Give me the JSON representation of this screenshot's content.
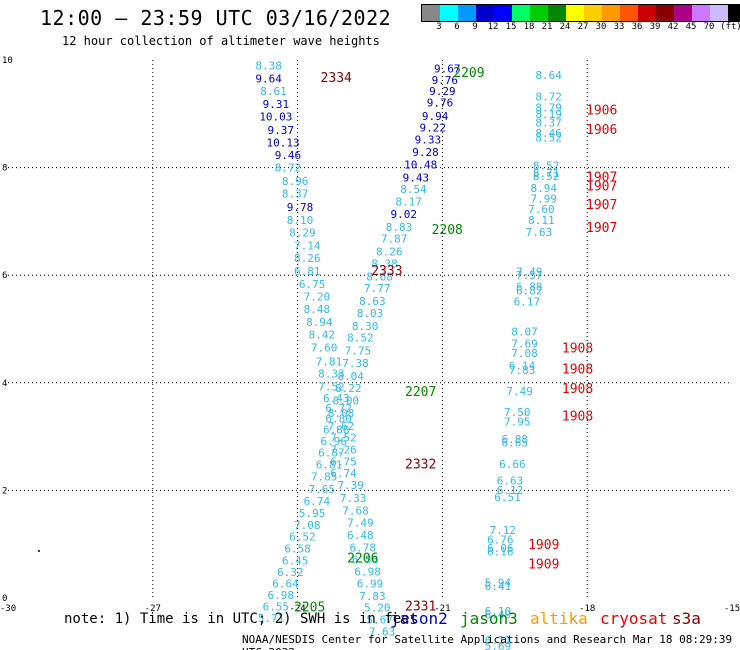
{
  "header": {
    "title": "12:00 – 23:59 UTC 03/16/2022",
    "subtitle": "12 hour collection of altimeter wave heights"
  },
  "legend": {
    "colors": [
      "#888888",
      "#00ffff",
      "#0099ff",
      "#0000cc",
      "#0000ff",
      "#00ff66",
      "#00cc00",
      "#008800",
      "#ffff00",
      "#ffcc00",
      "#ff9900",
      "#ff5500",
      "#cc0000",
      "#880000",
      "#aa0088",
      "#cc77ff",
      "#ccbbff",
      "#000000"
    ],
    "labels": [
      "3",
      "6",
      "9",
      "12",
      "15",
      "18",
      "21",
      "24",
      "27",
      "30",
      "33",
      "36",
      "39",
      "42",
      "45",
      "70",
      "(ft)"
    ]
  },
  "chart_data": {
    "type": "scatter",
    "title": "12:00 – 23:59 UTC 03/16/2022",
    "subtitle": "12 hour collection of altimeter wave heights",
    "xlim": [
      -30,
      -15
    ],
    "ylim": [
      0,
      10
    ],
    "xticks": [
      "-30",
      "-27",
      "-24",
      "-21",
      "-18",
      "-15"
    ],
    "yticks": [
      "0",
      "2",
      "4",
      "6",
      "8",
      "10"
    ],
    "grid": true,
    "units": "ft",
    "points": [
      {
        "x": -24.6,
        "y": 9.9,
        "v": "8.38",
        "c": "#33bbee"
      },
      {
        "x": -24.6,
        "y": 9.66,
        "v": "9.64",
        "c": "#0000cc"
      },
      {
        "x": -24.5,
        "y": 9.42,
        "v": "8.61",
        "c": "#33bbee"
      },
      {
        "x": -24.45,
        "y": 9.18,
        "v": "9.31",
        "c": "#0000cc"
      },
      {
        "x": -24.45,
        "y": 8.95,
        "v": "10.03",
        "c": "#0000cc"
      },
      {
        "x": -24.35,
        "y": 8.7,
        "v": "9.37",
        "c": "#0000cc"
      },
      {
        "x": -24.3,
        "y": 8.47,
        "v": "10.13",
        "c": "#0000cc"
      },
      {
        "x": -24.2,
        "y": 8.23,
        "v": "9.46",
        "c": "#0000cc"
      },
      {
        "x": -24.2,
        "y": 8.0,
        "v": "8.72",
        "c": "#33bbee"
      },
      {
        "x": -24.05,
        "y": 7.75,
        "v": "8.96",
        "c": "#33bbee"
      },
      {
        "x": -24.05,
        "y": 7.52,
        "v": "8.37",
        "c": "#33bbee"
      },
      {
        "x": -23.95,
        "y": 7.27,
        "v": "9.78",
        "c": "#0000cc"
      },
      {
        "x": -23.95,
        "y": 7.03,
        "v": "8.10",
        "c": "#33bbee"
      },
      {
        "x": -23.9,
        "y": 6.79,
        "v": "8.29",
        "c": "#33bbee"
      },
      {
        "x": -23.8,
        "y": 6.55,
        "v": "7.14",
        "c": "#33bbee"
      },
      {
        "x": -23.8,
        "y": 6.32,
        "v": "8.26",
        "c": "#33bbee"
      },
      {
        "x": -23.8,
        "y": 6.08,
        "v": "6.81",
        "c": "#33bbee"
      },
      {
        "x": -23.7,
        "y": 5.84,
        "v": "6.75",
        "c": "#33bbee"
      },
      {
        "x": -23.6,
        "y": 5.6,
        "v": "7.20",
        "c": "#33bbee"
      },
      {
        "x": -23.6,
        "y": 5.37,
        "v": "8.48",
        "c": "#33bbee"
      },
      {
        "x": -23.55,
        "y": 5.13,
        "v": "8.94",
        "c": "#33bbee"
      },
      {
        "x": -23.5,
        "y": 4.9,
        "v": "8.42",
        "c": "#33bbee"
      },
      {
        "x": -23.45,
        "y": 4.66,
        "v": "7.60",
        "c": "#33bbee"
      },
      {
        "x": -23.35,
        "y": 4.4,
        "v": "7.81",
        "c": "#33bbee"
      },
      {
        "x": -23.3,
        "y": 4.17,
        "v": "8.33",
        "c": "#33bbee"
      },
      {
        "x": -23.3,
        "y": 3.93,
        "v": "7.52",
        "c": "#33bbee"
      },
      {
        "x": -23.2,
        "y": 3.72,
        "v": "6.43",
        "c": "#33bbee"
      },
      {
        "x": -23.15,
        "y": 3.53,
        "v": "6.72",
        "c": "#33bbee"
      },
      {
        "x": -23.15,
        "y": 3.34,
        "v": "6.80",
        "c": "#33bbee"
      },
      {
        "x": -23.2,
        "y": 3.13,
        "v": "6.88",
        "c": "#33bbee"
      },
      {
        "x": -23.25,
        "y": 2.92,
        "v": "6.96",
        "c": "#33bbee"
      },
      {
        "x": -23.3,
        "y": 2.7,
        "v": "6.87",
        "c": "#33bbee"
      },
      {
        "x": -23.35,
        "y": 2.48,
        "v": "6.81",
        "c": "#33bbee"
      },
      {
        "x": -23.45,
        "y": 2.26,
        "v": "7.85",
        "c": "#33bbee"
      },
      {
        "x": -23.5,
        "y": 2.03,
        "v": "7.65",
        "c": "#33bbee"
      },
      {
        "x": -23.6,
        "y": 1.8,
        "v": "6.74",
        "c": "#33bbee"
      },
      {
        "x": -23.7,
        "y": 1.58,
        "v": "5.95",
        "c": "#33bbee"
      },
      {
        "x": -23.8,
        "y": 1.36,
        "v": "7.08",
        "c": "#33bbee"
      },
      {
        "x": -23.9,
        "y": 1.14,
        "v": "6.52",
        "c": "#33bbee"
      },
      {
        "x": -24.0,
        "y": 0.92,
        "v": "6.58",
        "c": "#33bbee"
      },
      {
        "x": -24.05,
        "y": 0.7,
        "v": "6.45",
        "c": "#33bbee"
      },
      {
        "x": -24.15,
        "y": 0.48,
        "v": "6.32",
        "c": "#33bbee"
      },
      {
        "x": -24.25,
        "y": 0.27,
        "v": "6.64",
        "c": "#33bbee"
      },
      {
        "x": -24.35,
        "y": 0.06,
        "v": "6.98",
        "c": "#33bbee"
      },
      {
        "x": -24.45,
        "y": -0.16,
        "v": "6.55",
        "c": "#33bbee"
      },
      {
        "x": -24.55,
        "y": -0.37,
        "v": "5.71",
        "c": "#33bbee"
      },
      {
        "x": -20.9,
        "y": 9.84,
        "v": "9.67",
        "c": "#0000cc"
      },
      {
        "x": -20.95,
        "y": 9.63,
        "v": "9.76",
        "c": "#0000cc"
      },
      {
        "x": -21.0,
        "y": 9.42,
        "v": "9.29",
        "c": "#0000cc"
      },
      {
        "x": -21.05,
        "y": 9.21,
        "v": "9.76",
        "c": "#0000cc"
      },
      {
        "x": -21.15,
        "y": 8.96,
        "v": "9.94",
        "c": "#0000cc"
      },
      {
        "x": -21.2,
        "y": 8.75,
        "v": "9.22",
        "c": "#0000cc"
      },
      {
        "x": -21.3,
        "y": 8.52,
        "v": "9.33",
        "c": "#0000cc"
      },
      {
        "x": -21.35,
        "y": 8.29,
        "v": "9.28",
        "c": "#0000cc"
      },
      {
        "x": -21.45,
        "y": 8.06,
        "v": "10.48",
        "c": "#0000cc"
      },
      {
        "x": -21.55,
        "y": 7.82,
        "v": "9.43",
        "c": "#0000cc"
      },
      {
        "x": -21.6,
        "y": 7.6,
        "v": "8.54",
        "c": "#33bbee"
      },
      {
        "x": -21.7,
        "y": 7.37,
        "v": "8.17",
        "c": "#33bbee"
      },
      {
        "x": -21.8,
        "y": 7.14,
        "v": "9.02",
        "c": "#0000cc"
      },
      {
        "x": -21.9,
        "y": 6.9,
        "v": "8.83",
        "c": "#33bbee"
      },
      {
        "x": -22.0,
        "y": 6.68,
        "v": "7.87",
        "c": "#33bbee"
      },
      {
        "x": -22.1,
        "y": 6.44,
        "v": "8.26",
        "c": "#33bbee"
      },
      {
        "x": -22.2,
        "y": 6.22,
        "v": "8.38",
        "c": "#33bbee"
      },
      {
        "x": -22.3,
        "y": 5.98,
        "v": "8.68",
        "c": "#33bbee"
      },
      {
        "x": -22.35,
        "y": 5.76,
        "v": "7.77",
        "c": "#33bbee"
      },
      {
        "x": -22.45,
        "y": 5.52,
        "v": "8.63",
        "c": "#33bbee"
      },
      {
        "x": -22.5,
        "y": 5.3,
        "v": "8.03",
        "c": "#33bbee"
      },
      {
        "x": -22.6,
        "y": 5.06,
        "v": "8.30",
        "c": "#33bbee"
      },
      {
        "x": -22.7,
        "y": 4.84,
        "v": "8.52",
        "c": "#33bbee"
      },
      {
        "x": -22.75,
        "y": 4.6,
        "v": "7.75",
        "c": "#33bbee"
      },
      {
        "x": -22.8,
        "y": 4.37,
        "v": "7.38",
        "c": "#33bbee"
      },
      {
        "x": -22.9,
        "y": 4.13,
        "v": "8.04",
        "c": "#33bbee"
      },
      {
        "x": -22.95,
        "y": 3.9,
        "v": "8.22",
        "c": "#33bbee"
      },
      {
        "x": -23.0,
        "y": 3.67,
        "v": "8.00",
        "c": "#33bbee"
      },
      {
        "x": -23.1,
        "y": 3.44,
        "v": "8.08",
        "c": "#33bbee"
      },
      {
        "x": -23.1,
        "y": 3.2,
        "v": "7.62",
        "c": "#33bbee"
      },
      {
        "x": -23.05,
        "y": 2.98,
        "v": "7.52",
        "c": "#33bbee"
      },
      {
        "x": -23.05,
        "y": 2.76,
        "v": "7.26",
        "c": "#33bbee"
      },
      {
        "x": -23.05,
        "y": 2.54,
        "v": "6.75",
        "c": "#33bbee"
      },
      {
        "x": -23.05,
        "y": 2.32,
        "v": "6.74",
        "c": "#33bbee"
      },
      {
        "x": -22.9,
        "y": 2.1,
        "v": "7.39",
        "c": "#33bbee"
      },
      {
        "x": -22.85,
        "y": 1.86,
        "v": "7.33",
        "c": "#33bbee"
      },
      {
        "x": -22.8,
        "y": 1.63,
        "v": "7.68",
        "c": "#33bbee"
      },
      {
        "x": -22.7,
        "y": 1.4,
        "v": "7.49",
        "c": "#33bbee"
      },
      {
        "x": -22.7,
        "y": 1.17,
        "v": "6.48",
        "c": "#33bbee"
      },
      {
        "x": -22.65,
        "y": 0.94,
        "v": "6.78",
        "c": "#33bbee"
      },
      {
        "x": -22.6,
        "y": 0.72,
        "v": "6.56",
        "c": "#33bbee"
      },
      {
        "x": -22.55,
        "y": 0.49,
        "v": "6.98",
        "c": "#33bbee"
      },
      {
        "x": -22.5,
        "y": 0.27,
        "v": "6.99",
        "c": "#33bbee"
      },
      {
        "x": -22.45,
        "y": 0.04,
        "v": "7.83",
        "c": "#33bbee"
      },
      {
        "x": -22.35,
        "y": -0.18,
        "v": "5.20",
        "c": "#33bbee"
      },
      {
        "x": -22.3,
        "y": -0.4,
        "v": "5.67",
        "c": "#33bbee"
      },
      {
        "x": -22.25,
        "y": -0.62,
        "v": "7.63",
        "c": "#33bbee"
      },
      {
        "x": -18.8,
        "y": 9.72,
        "v": "8.64",
        "c": "#33bbee"
      },
      {
        "x": -18.8,
        "y": 9.32,
        "v": "8.72",
        "c": "#33bbee"
      },
      {
        "x": -18.8,
        "y": 9.12,
        "v": "8.79",
        "c": "#33bbee"
      },
      {
        "x": -18.8,
        "y": 9.0,
        "v": "8.19",
        "c": "#33bbee"
      },
      {
        "x": -18.8,
        "y": 8.84,
        "v": "8.37",
        "c": "#33bbee"
      },
      {
        "x": -18.8,
        "y": 8.64,
        "v": "8.46",
        "c": "#33bbee"
      },
      {
        "x": -18.8,
        "y": 8.56,
        "v": "8.52",
        "c": "#33bbee"
      },
      {
        "x": -18.85,
        "y": 8.04,
        "v": "8.52",
        "c": "#33bbee"
      },
      {
        "x": -18.85,
        "y": 7.9,
        "v": "8.71",
        "c": "#33bbee"
      },
      {
        "x": -18.85,
        "y": 7.84,
        "v": "8.52",
        "c": "#33bbee"
      },
      {
        "x": -18.9,
        "y": 7.62,
        "v": "8.94",
        "c": "#33bbee"
      },
      {
        "x": -18.9,
        "y": 7.43,
        "v": "7.99",
        "c": "#33bbee"
      },
      {
        "x": -18.95,
        "y": 7.23,
        "v": "7.60",
        "c": "#33bbee"
      },
      {
        "x": -18.95,
        "y": 7.03,
        "v": "8.11",
        "c": "#33bbee"
      },
      {
        "x": -19.0,
        "y": 6.8,
        "v": "7.63",
        "c": "#33bbee"
      },
      {
        "x": -19.2,
        "y": 6.07,
        "v": "7.49",
        "c": "#33bbee"
      },
      {
        "x": -19.2,
        "y": 6.0,
        "v": "7.57",
        "c": "#33bbee"
      },
      {
        "x": -19.2,
        "y": 5.79,
        "v": "6.88",
        "c": "#33bbee"
      },
      {
        "x": -19.2,
        "y": 5.72,
        "v": "6.82",
        "c": "#33bbee"
      },
      {
        "x": -19.25,
        "y": 5.51,
        "v": "6.17",
        "c": "#33bbee"
      },
      {
        "x": -19.3,
        "y": 4.95,
        "v": "8.07",
        "c": "#33bbee"
      },
      {
        "x": -19.3,
        "y": 4.73,
        "v": "7.69",
        "c": "#33bbee"
      },
      {
        "x": -19.3,
        "y": 4.55,
        "v": "7.08",
        "c": "#33bbee"
      },
      {
        "x": -19.35,
        "y": 4.32,
        "v": "6.14",
        "c": "#33bbee"
      },
      {
        "x": -19.35,
        "y": 4.24,
        "v": "7.83",
        "c": "#33bbee"
      },
      {
        "x": -19.4,
        "y": 3.85,
        "v": "7.49",
        "c": "#33bbee"
      },
      {
        "x": -19.45,
        "y": 3.46,
        "v": "7.50",
        "c": "#33bbee"
      },
      {
        "x": -19.45,
        "y": 3.28,
        "v": "7.95",
        "c": "#33bbee"
      },
      {
        "x": -19.5,
        "y": 2.96,
        "v": "6.88",
        "c": "#33bbee"
      },
      {
        "x": -19.5,
        "y": 2.89,
        "v": "6.65",
        "c": "#33bbee"
      },
      {
        "x": -19.55,
        "y": 2.49,
        "v": "6.66",
        "c": "#33bbee"
      },
      {
        "x": -19.6,
        "y": 2.18,
        "v": "6.63",
        "c": "#33bbee"
      },
      {
        "x": -19.6,
        "y": 2.01,
        "v": "6.12",
        "c": "#33bbee"
      },
      {
        "x": -19.65,
        "y": 1.88,
        "v": "6.51",
        "c": "#33bbee"
      },
      {
        "x": -19.75,
        "y": 1.26,
        "v": "7.12",
        "c": "#33bbee"
      },
      {
        "x": -19.8,
        "y": 1.09,
        "v": "6.76",
        "c": "#33bbee"
      },
      {
        "x": -19.8,
        "y": 0.93,
        "v": "6.06",
        "c": "#33bbee"
      },
      {
        "x": -19.8,
        "y": 0.86,
        "v": "6.16",
        "c": "#33bbee"
      },
      {
        "x": -19.85,
        "y": 0.29,
        "v": "5.94",
        "c": "#33bbee"
      },
      {
        "x": -19.85,
        "y": 0.22,
        "v": "6.41",
        "c": "#33bbee"
      },
      {
        "x": -19.85,
        "y": -0.24,
        "v": "6.10",
        "c": "#33bbee"
      },
      {
        "x": -19.85,
        "y": -0.31,
        "v": "6.49",
        "c": "#33bbee"
      },
      {
        "x": -19.85,
        "y": -0.78,
        "v": "6.11",
        "c": "#33bbee"
      },
      {
        "x": -19.85,
        "y": -0.89,
        "v": "5.69",
        "c": "#33bbee"
      }
    ],
    "pass_labels": [
      {
        "x": -23.2,
        "y": 9.68,
        "label": "2334",
        "c": "#880000"
      },
      {
        "x": -20.45,
        "y": 9.78,
        "label": "2209",
        "c": "#008800"
      },
      {
        "x": -22.15,
        "y": 6.1,
        "label": "2333",
        "c": "#880000"
      },
      {
        "x": -20.9,
        "y": 6.86,
        "label": "2208",
        "c": "#008800"
      },
      {
        "x": -21.45,
        "y": 3.85,
        "label": "2207",
        "c": "#008800"
      },
      {
        "x": -21.45,
        "y": 2.5,
        "label": "2332",
        "c": "#880000"
      },
      {
        "x": -22.65,
        "y": 0.75,
        "label": "2206",
        "c": "#008800"
      },
      {
        "x": -23.75,
        "y": -0.16,
        "label": "2205",
        "c": "#008800"
      },
      {
        "x": -21.45,
        "y": -0.14,
        "label": "2331",
        "c": "#880000"
      },
      {
        "x": -17.7,
        "y": 9.08,
        "label": "1906",
        "c": "#ee0000"
      },
      {
        "x": -17.7,
        "y": 8.72,
        "label": "1906",
        "c": "#ee0000"
      },
      {
        "x": -17.7,
        "y": 7.83,
        "label": "1907",
        "c": "#ee0000"
      },
      {
        "x": -17.7,
        "y": 7.67,
        "label": "1907",
        "c": "#ee0000"
      },
      {
        "x": -17.7,
        "y": 7.32,
        "label": "1907",
        "c": "#ee0000"
      },
      {
        "x": -17.7,
        "y": 6.9,
        "label": "1907",
        "c": "#ee0000"
      },
      {
        "x": -18.2,
        "y": 4.66,
        "label": "1908",
        "c": "#ee0000"
      },
      {
        "x": -18.2,
        "y": 4.27,
        "label": "1908",
        "c": "#ee0000"
      },
      {
        "x": -18.2,
        "y": 3.9,
        "label": "1908",
        "c": "#ee0000"
      },
      {
        "x": -18.2,
        "y": 3.39,
        "label": "1908",
        "c": "#ee0000"
      },
      {
        "x": -18.9,
        "y": 1.0,
        "label": "1909",
        "c": "#ee0000"
      },
      {
        "x": -18.9,
        "y": 0.64,
        "label": "1909",
        "c": "#ee0000"
      }
    ]
  },
  "footer": {
    "note": "note: 1) Time is in UTC; 2) SWH is in feet",
    "satellites": [
      {
        "name": "jason2",
        "color": "#0000cc"
      },
      {
        "name": "jason3",
        "color": "#008800"
      },
      {
        "name": "altika",
        "color": "#ff9900"
      },
      {
        "name": "cryosat",
        "color": "#ee0000"
      },
      {
        "name": "s3a",
        "color": "#880000"
      }
    ],
    "credit": "NOAA/NESDIS Center for Satellite Applications and Research   Mar 18 08:29:39 UTC 2022"
  }
}
